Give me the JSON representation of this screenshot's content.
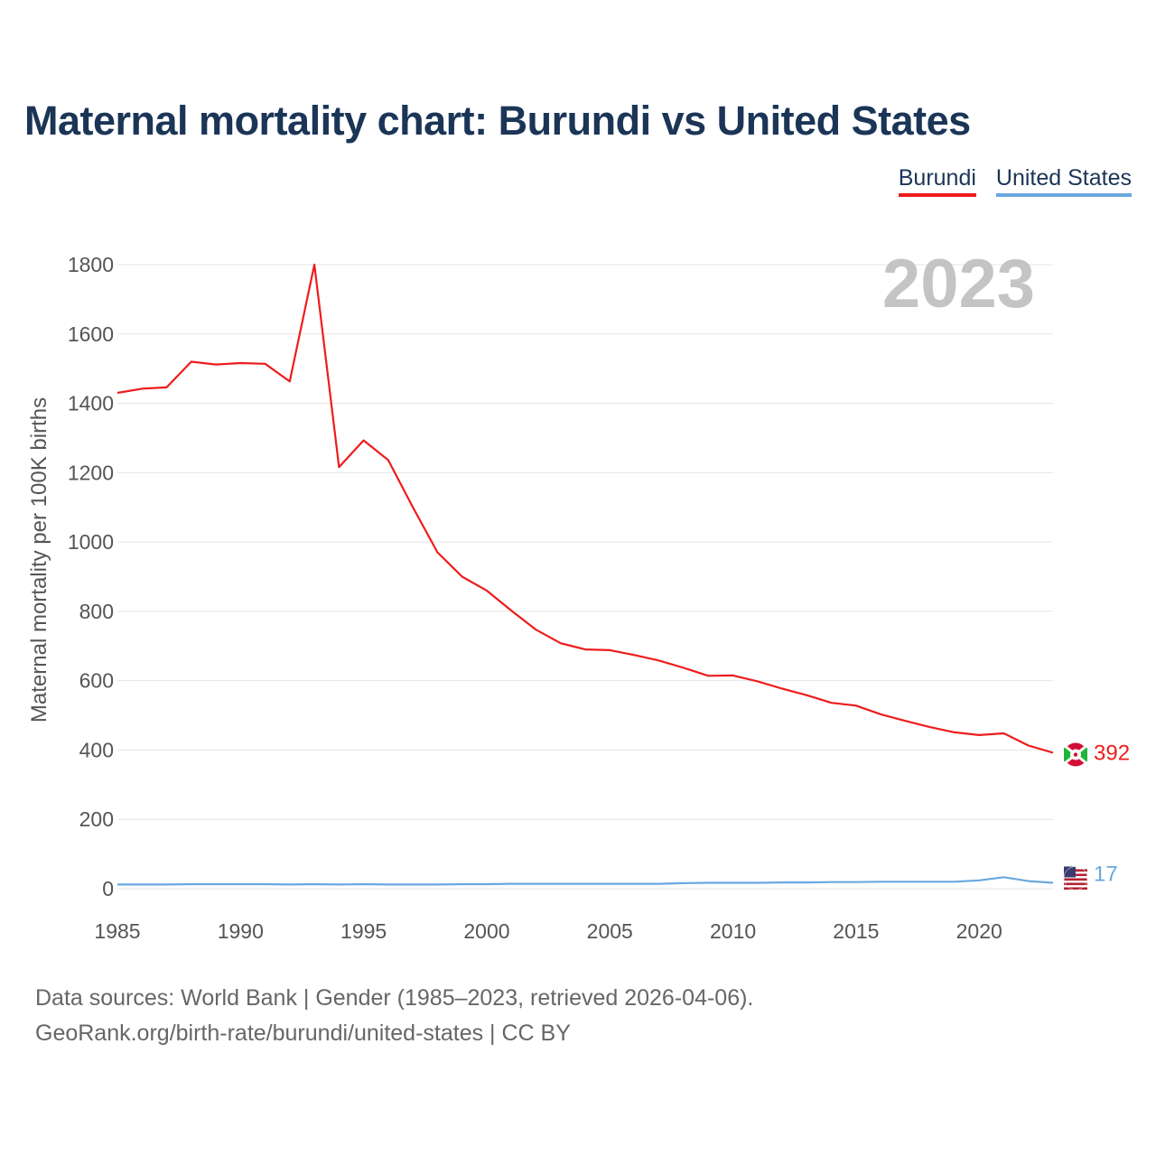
{
  "title": "Maternal mortality chart: Burundi vs United States",
  "legend": {
    "burundi": "Burundi",
    "united_states": "United States"
  },
  "year_label": "2023",
  "footer": {
    "line1": "Data sources: World Bank | Gender (1985–2023, retrieved 2026-04-06).",
    "line2": "GeoRank.org/birth-rate/burundi/united-states | CC BY"
  },
  "colors": {
    "burundi": "#ee1c1c",
    "united_states": "#6aa8e0",
    "title": "#1b3557",
    "grid": "#e6e6e6"
  },
  "chart_data": {
    "type": "line",
    "title": "Maternal mortality chart: Burundi vs United States",
    "xlabel": "",
    "ylabel": "Maternal mortality per 100K births",
    "xlim": [
      1985,
      2023
    ],
    "ylim": [
      0,
      1800
    ],
    "x_ticks": [
      1985,
      1990,
      1995,
      2000,
      2005,
      2010,
      2015,
      2020
    ],
    "y_ticks": [
      0,
      200,
      400,
      600,
      800,
      1000,
      1200,
      1400,
      1600,
      1800
    ],
    "x": [
      1985,
      1986,
      1987,
      1988,
      1989,
      1990,
      1991,
      1992,
      1993,
      1994,
      1995,
      1996,
      1997,
      1998,
      1999,
      2000,
      2001,
      2002,
      2003,
      2004,
      2005,
      2006,
      2007,
      2008,
      2009,
      2010,
      2011,
      2012,
      2013,
      2014,
      2015,
      2016,
      2017,
      2018,
      2019,
      2020,
      2021,
      2022,
      2023
    ],
    "series": [
      {
        "name": "Burundi",
        "color": "#ee1c1c",
        "end_label": "392",
        "values": [
          1430,
          1442,
          1446,
          1520,
          1512,
          1516,
          1514,
          1463,
          1800,
          1216,
          1293,
          1236,
          1100,
          970,
          900,
          860,
          802,
          747,
          708,
          690,
          688,
          674,
          658,
          637,
          614,
          615,
          598,
          577,
          558,
          536,
          528,
          503,
          484,
          466,
          451,
          443,
          448,
          413,
          392
        ]
      },
      {
        "name": "United States",
        "color": "#6aa8e0",
        "end_label": "17",
        "values": [
          12,
          12,
          12,
          13,
          13,
          13,
          13,
          12,
          13,
          12,
          13,
          12,
          12,
          12,
          13,
          13,
          14,
          14,
          14,
          14,
          14,
          14,
          14,
          16,
          17,
          17,
          17,
          18,
          18,
          19,
          19,
          20,
          20,
          20,
          20,
          24,
          33,
          22,
          17
        ]
      }
    ]
  }
}
